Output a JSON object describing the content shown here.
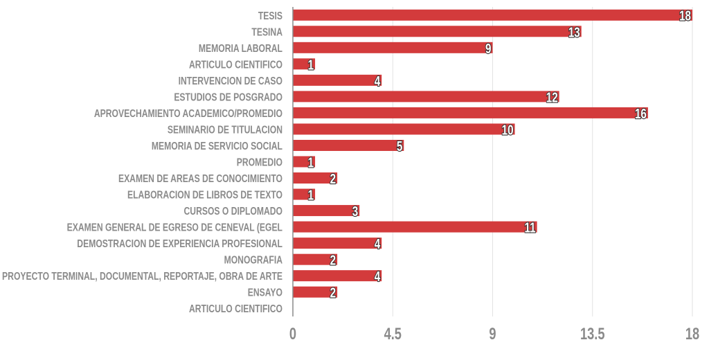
{
  "chart_data": {
    "type": "bar",
    "orientation": "horizontal",
    "title": "",
    "xlabel": "",
    "ylabel": "",
    "categories": [
      "TESIS",
      "TESINA",
      "MEMORIA LABORAL",
      "ARTICULO CIENTIFICO",
      "INTERVENCION DE CASO",
      "ESTUDIOS DE POSGRADO",
      "APROVECHAMIENTO ACADEMICO/PROMEDIO",
      "SEMINARIO DE TITULACION",
      "MEMORIA DE SERVICIO SOCIAL",
      "PROMEDIO",
      "EXAMEN DE AREAS DE CONOCIMIENTO",
      "ELABORACION DE LIBROS DE TEXTO",
      "CURSOS O DIPLOMADO",
      "EXAMEN GENERAL DE EGRESO DE CENEVAL (EGEL",
      "DEMOSTRACION DE EXPERIENCIA PROFESIONAL",
      "MONOGRAFIA",
      "PROYECTO TERMINAL, DOCUMENTAL, REPORTAJE, OBRA DE ARTE",
      "ENSAYO",
      "ARTICULO CIENTIFICO"
    ],
    "values": [
      18,
      13,
      9,
      1,
      4,
      12,
      16,
      10,
      5,
      1,
      2,
      1,
      3,
      11,
      4,
      2,
      4,
      2,
      0
    ],
    "xlim": [
      0,
      18
    ],
    "xticks": [
      "0",
      "4.5",
      "9",
      "13.5",
      "18"
    ],
    "xtick_values": [
      0,
      4.5,
      9,
      13.5,
      18
    ],
    "grid": true,
    "data_labels": true,
    "colors": {
      "bar": "#d33b3c",
      "grid": "#e2e2e2",
      "axis": "#8a8a8a",
      "text": "#8a8a8a"
    }
  }
}
